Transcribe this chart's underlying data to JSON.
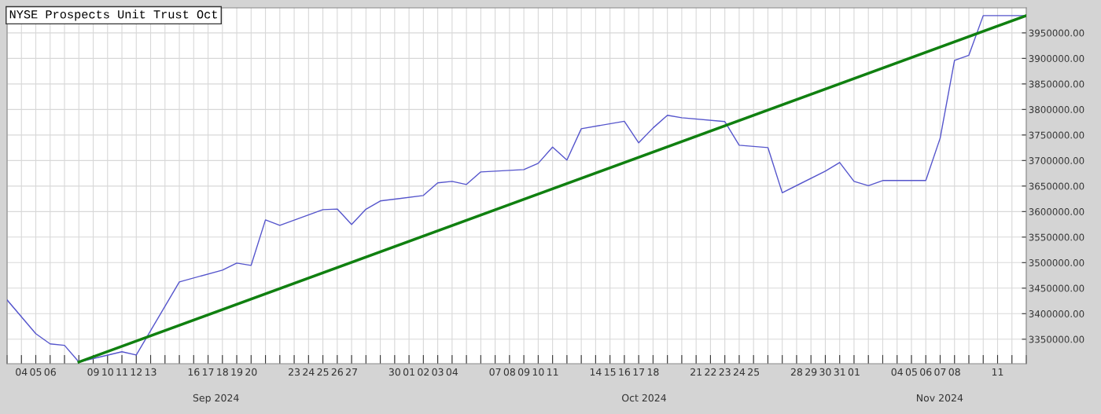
{
  "chart_data": {
    "type": "line",
    "title": "NYSE Prospects Unit Trust Oct",
    "x": [
      "2024-09-03",
      "2024-09-05",
      "2024-09-06",
      "2024-09-07",
      "2024-09-08",
      "2024-09-11",
      "2024-09-12",
      "2024-09-15",
      "2024-09-18",
      "2024-09-19",
      "2024-09-20",
      "2024-09-21",
      "2024-09-22",
      "2024-09-25",
      "2024-09-26",
      "2024-09-27",
      "2024-09-28",
      "2024-09-29",
      "2024-10-02",
      "2024-10-03",
      "2024-10-04",
      "2024-10-05",
      "2024-10-06",
      "2024-10-09",
      "2024-10-10",
      "2024-10-11",
      "2024-10-12",
      "2024-10-13",
      "2024-10-16",
      "2024-10-17",
      "2024-10-18",
      "2024-10-19",
      "2024-10-20",
      "2024-10-23",
      "2024-10-24",
      "2024-10-26",
      "2024-10-27",
      "2024-10-30",
      "2024-10-31",
      "2024-11-01",
      "2024-11-02",
      "2024-11-03",
      "2024-11-06",
      "2024-11-07",
      "2024-11-08",
      "2024-11-09",
      "2024-11-10",
      "2024-11-13"
    ],
    "series": [
      {
        "color": "#5555cc",
        "values": [
          3426900,
          3360800,
          3340800,
          3338000,
          3305400,
          3325400,
          3319200,
          3462300,
          3485400,
          3499200,
          3494600,
          3583800,
          3573100,
          3603800,
          3605000,
          3574600,
          3604600,
          3620800,
          3631500,
          3656200,
          3659200,
          3653100,
          3677700,
          3682300,
          3694600,
          3726200,
          3700800,
          3762300,
          3776900,
          3734600,
          3763800,
          3788500,
          3783800,
          3776200,
          3730000,
          3725400,
          3636900,
          3679200,
          3696200,
          3659200,
          3650600,
          3660800,
          3660800,
          3743800,
          3896200,
          3906200,
          3983800,
          3983800
        ]
      },
      {
        "type": "line",
        "color": "#108010",
        "x": [
          "2024-09-08",
          "2024-11-13"
        ],
        "values": [
          3305400,
          3983800
        ]
      }
    ],
    "xlim": [
      "2024-09-03",
      "2024-11-13"
    ],
    "xticks": [
      {
        "value": "2024-09-03",
        "label": null
      },
      {
        "value": "2024-09-04",
        "label": "04"
      },
      {
        "value": "2024-09-05",
        "label": "05"
      },
      {
        "value": "2024-09-06",
        "label": "06"
      },
      {
        "value": "2024-09-07",
        "label": null
      },
      {
        "value": "2024-09-08",
        "label": null
      },
      {
        "value": "2024-09-09",
        "label": "09"
      },
      {
        "value": "2024-09-10",
        "label": "10"
      },
      {
        "value": "2024-09-11",
        "label": "11"
      },
      {
        "value": "2024-09-12",
        "label": "12"
      },
      {
        "value": "2024-09-13",
        "label": "13"
      },
      {
        "value": "2024-09-14",
        "label": null
      },
      {
        "value": "2024-09-15",
        "label": null
      },
      {
        "value": "2024-09-16",
        "label": "16"
      },
      {
        "value": "2024-09-17",
        "label": "17"
      },
      {
        "value": "2024-09-18",
        "label": "18"
      },
      {
        "value": "2024-09-19",
        "label": "19"
      },
      {
        "value": "2024-09-20",
        "label": "20"
      },
      {
        "value": "2024-09-21",
        "label": null
      },
      {
        "value": "2024-09-22",
        "label": null
      },
      {
        "value": "2024-09-23",
        "label": "23"
      },
      {
        "value": "2024-09-24",
        "label": "24"
      },
      {
        "value": "2024-09-25",
        "label": "25"
      },
      {
        "value": "2024-09-26",
        "label": "26"
      },
      {
        "value": "2024-09-27",
        "label": "27"
      },
      {
        "value": "2024-09-28",
        "label": null
      },
      {
        "value": "2024-09-29",
        "label": null
      },
      {
        "value": "2024-09-30",
        "label": "30"
      },
      {
        "value": "2024-10-01",
        "label": "01"
      },
      {
        "value": "2024-10-02",
        "label": "02"
      },
      {
        "value": "2024-10-03",
        "label": "03"
      },
      {
        "value": "2024-10-04",
        "label": "04"
      },
      {
        "value": "2024-10-05",
        "label": null
      },
      {
        "value": "2024-10-06",
        "label": null
      },
      {
        "value": "2024-10-07",
        "label": "07"
      },
      {
        "value": "2024-10-08",
        "label": "08"
      },
      {
        "value": "2024-10-09",
        "label": "09"
      },
      {
        "value": "2024-10-10",
        "label": "10"
      },
      {
        "value": "2024-10-11",
        "label": "11"
      },
      {
        "value": "2024-10-12",
        "label": null
      },
      {
        "value": "2024-10-13",
        "label": null
      },
      {
        "value": "2024-10-14",
        "label": "14"
      },
      {
        "value": "2024-10-15",
        "label": "15"
      },
      {
        "value": "2024-10-16",
        "label": "16"
      },
      {
        "value": "2024-10-17",
        "label": "17"
      },
      {
        "value": "2024-10-18",
        "label": "18"
      },
      {
        "value": "2024-10-19",
        "label": null
      },
      {
        "value": "2024-10-20",
        "label": null
      },
      {
        "value": "2024-10-21",
        "label": "21"
      },
      {
        "value": "2024-10-22",
        "label": "22"
      },
      {
        "value": "2024-10-23",
        "label": "23"
      },
      {
        "value": "2024-10-24",
        "label": "24"
      },
      {
        "value": "2024-10-25",
        "label": "25"
      },
      {
        "value": "2024-10-26",
        "label": null
      },
      {
        "value": "2024-10-27",
        "label": null
      },
      {
        "value": "2024-10-28",
        "label": "28"
      },
      {
        "value": "2024-10-29",
        "label": "29"
      },
      {
        "value": "2024-10-30",
        "label": "30"
      },
      {
        "value": "2024-10-31",
        "label": "31"
      },
      {
        "value": "2024-11-01",
        "label": "01"
      },
      {
        "value": "2024-11-02",
        "label": null
      },
      {
        "value": "2024-11-03",
        "label": null
      },
      {
        "value": "2024-11-04",
        "label": "04"
      },
      {
        "value": "2024-11-05",
        "label": "05"
      },
      {
        "value": "2024-11-06",
        "label": "06"
      },
      {
        "value": "2024-11-07",
        "label": "07"
      },
      {
        "value": "2024-11-08",
        "label": "08"
      },
      {
        "value": "2024-11-09",
        "label": null
      },
      {
        "value": "2024-11-10",
        "label": null
      },
      {
        "value": "2024-11-11",
        "label": "11"
      },
      {
        "value": "2024-11-12",
        "label": null
      },
      {
        "value": "2024-11-13",
        "label": null
      }
    ],
    "ylim": [
      3302000,
      3999000
    ],
    "yticks": [
      {
        "value": 3350000,
        "label": "3350000.00"
      },
      {
        "value": 3400000,
        "label": "3400000.00"
      },
      {
        "value": 3450000,
        "label": "3450000.00"
      },
      {
        "value": 3500000,
        "label": "3500000.00"
      },
      {
        "value": 3550000,
        "label": "3550000.00"
      },
      {
        "value": 3600000,
        "label": "3600000.00"
      },
      {
        "value": 3650000,
        "label": "3650000.00"
      },
      {
        "value": 3700000,
        "label": "3700000.00"
      },
      {
        "value": 3750000,
        "label": "3750000.00"
      },
      {
        "value": 3800000,
        "label": "3800000.00"
      },
      {
        "value": 3850000,
        "label": "3850000.00"
      },
      {
        "value": 3900000,
        "label": "3900000.00"
      },
      {
        "value": 3950000,
        "label": "3950000.00"
      }
    ],
    "grid": true,
    "annotations": [
      "Sep 2024",
      "Oct 2024",
      "Nov 2024"
    ]
  }
}
